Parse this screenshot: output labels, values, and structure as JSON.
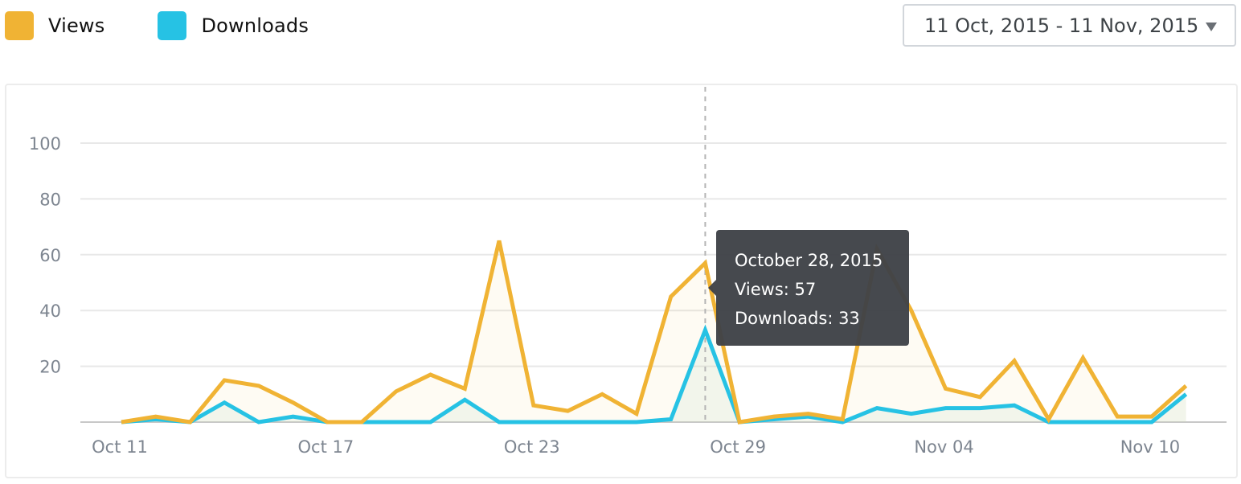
{
  "legend": [
    {
      "label": "Views",
      "color": "#f0b334"
    },
    {
      "label": "Downloads",
      "color": "#26c2e4"
    }
  ],
  "date_range": {
    "label": "11 Oct, 2015 - 11 Nov, 2015",
    "icon": "caret-down-icon"
  },
  "tooltip": {
    "date": "October 28, 2015",
    "views": "Views: 57",
    "downloads": "Downloads: 33"
  },
  "chart_data": {
    "type": "line",
    "title": "",
    "xlabel": "",
    "ylabel": "",
    "ylim": [
      0,
      100
    ],
    "yticks": [
      20,
      40,
      60,
      80,
      100
    ],
    "grid": true,
    "legend_position": "top-left",
    "x": [
      "Oct 11",
      "Oct 12",
      "Oct 13",
      "Oct 14",
      "Oct 15",
      "Oct 16",
      "Oct 17",
      "Oct 18",
      "Oct 19",
      "Oct 20",
      "Oct 21",
      "Oct 22",
      "Oct 23",
      "Oct 24",
      "Oct 25",
      "Oct 26",
      "Oct 27",
      "Oct 28",
      "Oct 29",
      "Oct 30",
      "Oct 31",
      "Nov 01",
      "Nov 02",
      "Nov 03",
      "Nov 04",
      "Nov 05",
      "Nov 06",
      "Nov 07",
      "Nov 08",
      "Nov 09",
      "Nov 10",
      "Nov 11"
    ],
    "xtick_labels": [
      {
        "label": "Oct 11",
        "index": 0
      },
      {
        "label": "Oct 17",
        "index": 6
      },
      {
        "label": "Oct 23",
        "index": 12
      },
      {
        "label": "Oct 29",
        "index": 18
      },
      {
        "label": "Nov 04",
        "index": 24
      },
      {
        "label": "Nov 10",
        "index": 30
      }
    ],
    "series": [
      {
        "name": "Views",
        "color": "#f0b334",
        "values": [
          0,
          2,
          0,
          15,
          13,
          7,
          0,
          0,
          11,
          17,
          12,
          65,
          6,
          4,
          10,
          3,
          45,
          57,
          0,
          2,
          3,
          1,
          62,
          40,
          12,
          9,
          22,
          1,
          23,
          2,
          2,
          13
        ]
      },
      {
        "name": "Downloads",
        "color": "#26c2e4",
        "values": [
          0,
          1,
          0,
          7,
          0,
          2,
          0,
          0,
          0,
          0,
          8,
          0,
          0,
          0,
          0,
          0,
          1,
          33,
          0,
          1,
          2,
          0,
          5,
          3,
          5,
          5,
          6,
          0,
          0,
          0,
          0,
          10
        ]
      }
    ],
    "highlight": {
      "index": 17,
      "date": "October 28, 2015",
      "views": 57,
      "downloads": 33
    }
  }
}
